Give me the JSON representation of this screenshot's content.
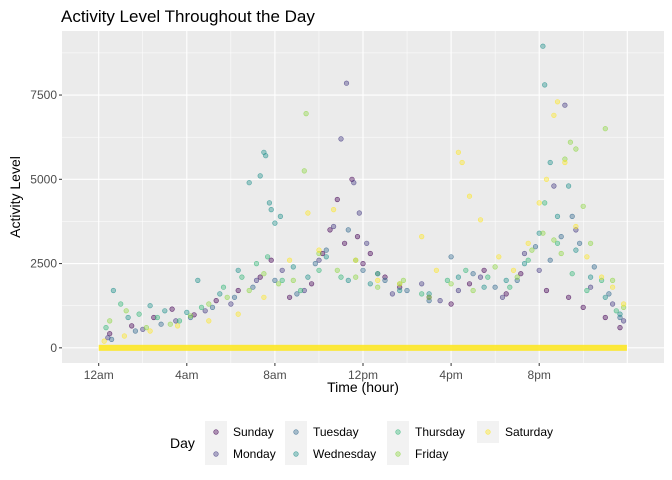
{
  "chart_data": {
    "type": "scatter",
    "title": "Activity Level Throughout the Day",
    "xlabel": "Time (hour)",
    "ylabel": "Activity Level",
    "xlim": [
      -100,
      1540
    ],
    "ylim": [
      -450,
      9400
    ],
    "x_ticks": [
      {
        "value": 0,
        "label": "12am"
      },
      {
        "value": 240,
        "label": "4am"
      },
      {
        "value": 480,
        "label": "8am"
      },
      {
        "value": 720,
        "label": "12pm"
      },
      {
        "value": 960,
        "label": "4pm"
      },
      {
        "value": 1200,
        "label": "8pm"
      }
    ],
    "y_ticks": [
      {
        "value": 0,
        "label": "0"
      },
      {
        "value": 2500,
        "label": "2500"
      },
      {
        "value": 5000,
        "label": "5000"
      },
      {
        "value": 7500,
        "label": "7500"
      }
    ],
    "grid": true,
    "point_alpha": 0.4,
    "legend": {
      "title": "Day",
      "placement": "bottom",
      "ncol": 4
    },
    "series": [
      {
        "name": "Sunday",
        "color": "#440154",
        "points": [
          [
            30,
            420
          ],
          [
            90,
            650
          ],
          [
            150,
            900
          ],
          [
            200,
            1150
          ],
          [
            260,
            980
          ],
          [
            320,
            1400
          ],
          [
            380,
            1700
          ],
          [
            440,
            2100
          ],
          [
            470,
            2600
          ],
          [
            520,
            1500
          ],
          [
            580,
            1900
          ],
          [
            610,
            2800
          ],
          [
            630,
            3500
          ],
          [
            650,
            4400
          ],
          [
            670,
            3100
          ],
          [
            690,
            5000
          ],
          [
            705,
            3300
          ],
          [
            720,
            2500
          ],
          [
            740,
            2800
          ],
          [
            780,
            2100
          ],
          [
            820,
            1800
          ],
          [
            900,
            1500
          ],
          [
            960,
            1300
          ],
          [
            1010,
            1900
          ],
          [
            1050,
            2300
          ],
          [
            1110,
            1600
          ],
          [
            1150,
            2200
          ],
          [
            1220,
            1700
          ],
          [
            1280,
            1500
          ],
          [
            1320,
            1200
          ],
          [
            1380,
            900
          ],
          [
            1420,
            600
          ]
        ]
      },
      {
        "name": "Monday",
        "color": "#443A83",
        "points": [
          [
            25,
            300
          ],
          [
            120,
            550
          ],
          [
            210,
            800
          ],
          [
            290,
            1100
          ],
          [
            360,
            1300
          ],
          [
            430,
            2000
          ],
          [
            500,
            2300
          ],
          [
            560,
            1700
          ],
          [
            600,
            2600
          ],
          [
            640,
            3600
          ],
          [
            660,
            6200
          ],
          [
            675,
            7850
          ],
          [
            695,
            4900
          ],
          [
            710,
            4000
          ],
          [
            730,
            3100
          ],
          [
            760,
            2200
          ],
          [
            800,
            1600
          ],
          [
            880,
            1900
          ],
          [
            930,
            1400
          ],
          [
            980,
            1700
          ],
          [
            1040,
            2100
          ],
          [
            1100,
            1500
          ],
          [
            1160,
            2800
          ],
          [
            1200,
            2300
          ],
          [
            1240,
            4800
          ],
          [
            1270,
            7200
          ],
          [
            1300,
            3500
          ],
          [
            1340,
            1800
          ],
          [
            1400,
            1300
          ],
          [
            1430,
            800
          ]
        ]
      },
      {
        "name": "Tuesday",
        "color": "#31688E",
        "points": [
          [
            35,
            250
          ],
          [
            100,
            500
          ],
          [
            170,
            700
          ],
          [
            250,
            900
          ],
          [
            310,
            1200
          ],
          [
            370,
            1500
          ],
          [
            420,
            1800
          ],
          [
            480,
            2000
          ],
          [
            540,
            1600
          ],
          [
            590,
            2500
          ],
          [
            620,
            2900
          ],
          [
            680,
            3500
          ],
          [
            720,
            2300
          ],
          [
            780,
            2000
          ],
          [
            840,
            1700
          ],
          [
            900,
            1400
          ],
          [
            960,
            2700
          ],
          [
            1020,
            2200
          ],
          [
            1080,
            1800
          ],
          [
            1140,
            2000
          ],
          [
            1190,
            3000
          ],
          [
            1230,
            2600
          ],
          [
            1260,
            3300
          ],
          [
            1290,
            3900
          ],
          [
            1310,
            3100
          ],
          [
            1350,
            2400
          ],
          [
            1390,
            1600
          ],
          [
            1420,
            900
          ]
        ]
      },
      {
        "name": "Wednesday",
        "color": "#21908C",
        "points": [
          [
            40,
            1700
          ],
          [
            80,
            900
          ],
          [
            140,
            1250
          ],
          [
            180,
            1100
          ],
          [
            240,
            1050
          ],
          [
            270,
            2000
          ],
          [
            330,
            1600
          ],
          [
            380,
            2300
          ],
          [
            410,
            4900
          ],
          [
            440,
            5100
          ],
          [
            450,
            5800
          ],
          [
            455,
            5700
          ],
          [
            465,
            4300
          ],
          [
            470,
            4100
          ],
          [
            480,
            3700
          ],
          [
            495,
            3900
          ],
          [
            530,
            2400
          ],
          [
            570,
            2100
          ],
          [
            620,
            2700
          ],
          [
            680,
            2000
          ],
          [
            740,
            1900
          ],
          [
            820,
            1700
          ],
          [
            900,
            1600
          ],
          [
            980,
            2100
          ],
          [
            1050,
            1800
          ],
          [
            1110,
            2000
          ],
          [
            1160,
            2500
          ],
          [
            1200,
            3400
          ],
          [
            1210,
            8950
          ],
          [
            1215,
            7800
          ],
          [
            1230,
            5500
          ],
          [
            1250,
            3900
          ],
          [
            1280,
            4800
          ],
          [
            1300,
            2900
          ],
          [
            1340,
            2100
          ],
          [
            1380,
            1500
          ],
          [
            1420,
            1000
          ]
        ]
      },
      {
        "name": "Thursday",
        "color": "#35B779",
        "points": [
          [
            20,
            600
          ],
          [
            60,
            1300
          ],
          [
            110,
            1000
          ],
          [
            160,
            900
          ],
          [
            220,
            800
          ],
          [
            280,
            1200
          ],
          [
            340,
            1800
          ],
          [
            390,
            2100
          ],
          [
            430,
            2500
          ],
          [
            460,
            2700
          ],
          [
            500,
            2000
          ],
          [
            550,
            1700
          ],
          [
            600,
            2300
          ],
          [
            660,
            2100
          ],
          [
            700,
            2600
          ],
          [
            760,
            2200
          ],
          [
            820,
            1900
          ],
          [
            880,
            1600
          ],
          [
            950,
            2000
          ],
          [
            1000,
            2300
          ],
          [
            1060,
            2100
          ],
          [
            1120,
            1800
          ],
          [
            1170,
            2600
          ],
          [
            1215,
            4300
          ],
          [
            1250,
            3100
          ],
          [
            1290,
            2200
          ],
          [
            1330,
            1700
          ],
          [
            1370,
            2000
          ],
          [
            1410,
            1100
          ]
        ]
      },
      {
        "name": "Friday",
        "color": "#8FD744",
        "points": [
          [
            30,
            800
          ],
          [
            75,
            1100
          ],
          [
            130,
            600
          ],
          [
            195,
            700
          ],
          [
            250,
            950
          ],
          [
            300,
            1300
          ],
          [
            350,
            1500
          ],
          [
            410,
            1700
          ],
          [
            450,
            2200
          ],
          [
            490,
            1900
          ],
          [
            530,
            2000
          ],
          [
            560,
            5250
          ],
          [
            565,
            6950
          ],
          [
            600,
            2800
          ],
          [
            650,
            2300
          ],
          [
            700,
            2100
          ],
          [
            760,
            1800
          ],
          [
            830,
            2000
          ],
          [
            900,
            1500
          ],
          [
            960,
            1900
          ],
          [
            1020,
            1700
          ],
          [
            1080,
            2400
          ],
          [
            1140,
            2100
          ],
          [
            1180,
            2900
          ],
          [
            1210,
            3400
          ],
          [
            1240,
            3200
          ],
          [
            1260,
            2800
          ],
          [
            1270,
            5600
          ],
          [
            1285,
            6100
          ],
          [
            1300,
            5900
          ],
          [
            1320,
            4200
          ],
          [
            1340,
            3100
          ],
          [
            1380,
            6500
          ],
          [
            1400,
            2000
          ],
          [
            1430,
            1200
          ]
        ]
      },
      {
        "name": "Saturday",
        "color": "#FDE725",
        "points": [
          [
            15,
            200
          ],
          [
            70,
            350
          ],
          [
            140,
            500
          ],
          [
            215,
            650
          ],
          [
            300,
            800
          ],
          [
            380,
            1000
          ],
          [
            450,
            1500
          ],
          [
            520,
            2600
          ],
          [
            570,
            4000
          ],
          [
            600,
            2900
          ],
          [
            640,
            4100
          ],
          [
            700,
            2600
          ],
          [
            760,
            2000
          ],
          [
            820,
            1900
          ],
          [
            880,
            3300
          ],
          [
            920,
            2300
          ],
          [
            980,
            5800
          ],
          [
            990,
            5500
          ],
          [
            1010,
            4500
          ],
          [
            1040,
            3800
          ],
          [
            1090,
            2700
          ],
          [
            1130,
            2300
          ],
          [
            1170,
            3100
          ],
          [
            1200,
            4300
          ],
          [
            1220,
            5000
          ],
          [
            1240,
            6900
          ],
          [
            1250,
            7300
          ],
          [
            1270,
            5500
          ],
          [
            1300,
            3600
          ],
          [
            1330,
            2700
          ],
          [
            1370,
            2100
          ],
          [
            1400,
            1800
          ],
          [
            1430,
            1300
          ]
        ]
      }
    ]
  }
}
